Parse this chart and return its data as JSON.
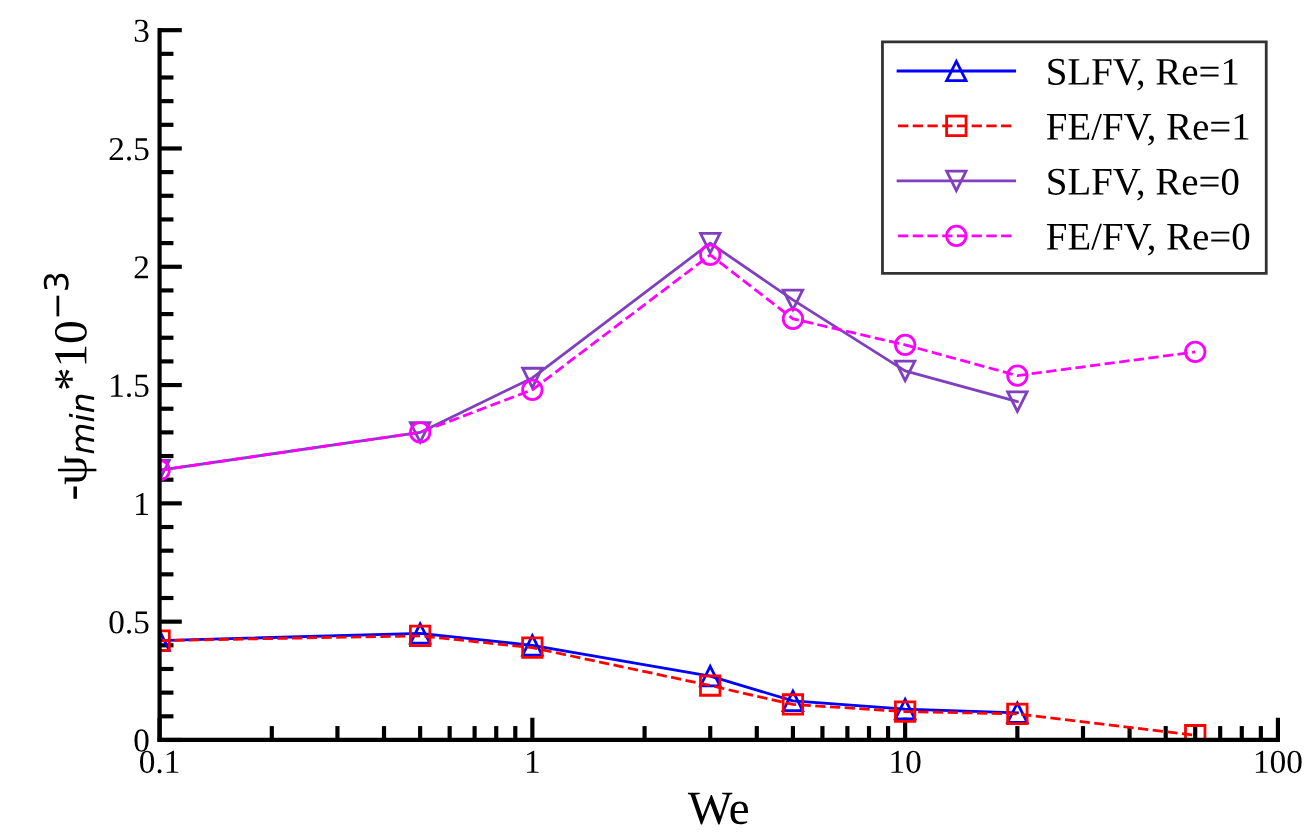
{
  "chart_data": {
    "type": "line",
    "xlabel": "We",
    "ylabel": "-ψ$_{min}$*10$^{−3}$",
    "log": "x",
    "xlim": [
      0.1,
      100
    ],
    "xticks": [
      0.1,
      1,
      10,
      100
    ],
    "ylim": [
      0,
      3
    ],
    "yticks": [
      0,
      0.5,
      1,
      1.5,
      2,
      2.5,
      3
    ],
    "grid": false,
    "legend": "top right",
    "x": [
      0.1,
      0.5,
      1,
      3,
      5,
      10,
      20,
      60
    ],
    "series": [
      {
        "name": "SLFV, Re=1",
        "color": "#0000ff",
        "marker": "triangle",
        "line_style": "solid",
        "values": [
          0.42,
          0.45,
          0.4,
          0.27,
          0.165,
          0.13,
          0.115,
          null
        ]
      },
      {
        "name": "FE/FV, Re=1",
        "color": "#ff0000",
        "marker": "square",
        "line_style": "dashed",
        "values": [
          0.42,
          0.44,
          0.39,
          0.23,
          0.15,
          0.12,
          0.11,
          0.02
        ]
      },
      {
        "name": "SLFV, Re=0",
        "color": "#7f3fbf",
        "marker": "triangle_down",
        "line_style": "solid",
        "values": [
          1.14,
          1.3,
          1.53,
          2.1,
          1.86,
          1.56,
          1.43,
          null
        ]
      },
      {
        "name": "FE/FV, Re=0",
        "color": "#ff00ff",
        "marker": "circle",
        "line_style": "dashed",
        "values": [
          1.14,
          1.3,
          1.48,
          2.05,
          1.78,
          1.67,
          1.54,
          1.64
        ]
      }
    ]
  }
}
